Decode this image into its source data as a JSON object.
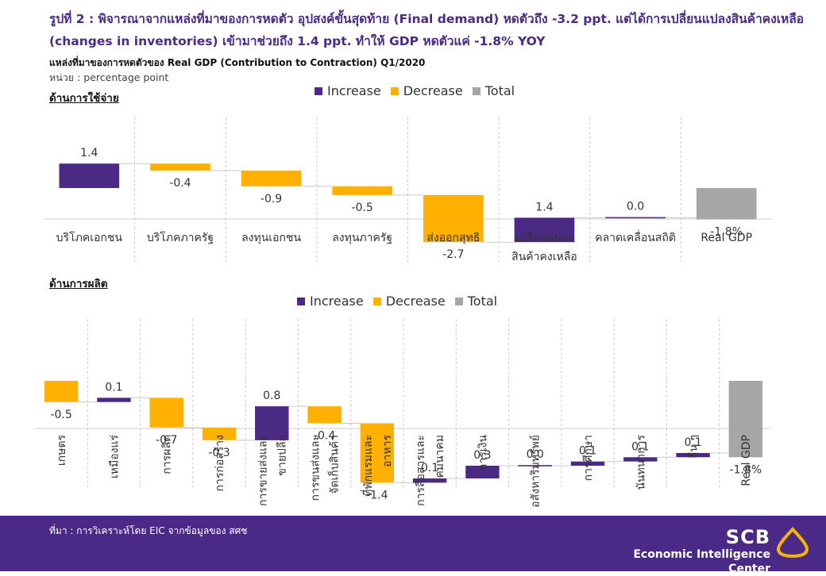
{
  "header": {
    "title": "รูปที่ 2 : พิจารณาจากแหล่งที่มาของการหดตัว อุปสงค์ขั้นสุดท้าย (Final demand) หดตัวถึง -3.2 ppt. แต่ได้การเปลี่ยนแปลงสินค้าคงเหลือ (changes in inventories) เข้ามาช่วยถึง 1.4 ppt. ทำให้ GDP หดตัวแค่ -1.8% YOY",
    "subtitle": "แหล่งที่มาของการหดตัวของ  Real GDP (Contribution to Contraction) Q1/2020",
    "unit": "หน่วย : percentage point"
  },
  "colors": {
    "increase": "#4b2a85",
    "decrease": "#ffb000",
    "total": "#a6a6a6",
    "brand": "#4a2a86"
  },
  "legend": {
    "increase": "Increase",
    "decrease": "Decrease",
    "total": "Total"
  },
  "chart_data": [
    {
      "type": "bar",
      "subtype": "waterfall",
      "section_title": "ด้านการใช้จ่าย",
      "categories": [
        "บริโภคเอกชน",
        "บริโภคภาครัฐ",
        "ลงทุนเอกชน",
        "ลงทุนภาครัฐ",
        "ส่งออกสุทธิ",
        "เปลี่ยนแปลง สินค้าคงเหลือ",
        "คลาดเคลื่อนสถิติ",
        "Real GDP"
      ],
      "category_lines": [
        [
          "บริโภคเอกชน"
        ],
        [
          "บริโภคภาครัฐ"
        ],
        [
          "ลงทุนเอกชน"
        ],
        [
          "ลงทุนภาครัฐ"
        ],
        [
          "ส่งออกสุทธิ"
        ],
        [
          "เปลี่ยนแปลง",
          "สินค้าคงเหลือ"
        ],
        [
          "คลาดเคลื่อนสถิติ"
        ],
        [
          "Real GDP"
        ]
      ],
      "values": [
        1.4,
        -0.4,
        -0.9,
        -0.5,
        -2.7,
        1.4,
        0.0,
        -1.8
      ],
      "labels": [
        "1.4",
        "-0.4",
        "-0.9",
        "-0.5",
        "-2.7",
        "1.4",
        "0.0",
        "-1.8%"
      ],
      "kinds": [
        "increase",
        "decrease",
        "decrease",
        "decrease",
        "decrease",
        "increase",
        "increase",
        "total"
      ],
      "legend": [
        "Increase",
        "Decrease",
        "Total"
      ]
    },
    {
      "type": "bar",
      "subtype": "waterfall",
      "section_title": "ด้านการผลิต",
      "categories": [
        "เกษตร",
        "เหมืองแร่",
        "การผลิต",
        "การก่อสร้าง",
        "การขายส่งและ ขายปลีก",
        "การขนส่งและ จัดเก็บสินค้า",
        "ที่พักแรมและ อาหาร",
        "การสื่อสารและ คมนาคม",
        "การเงิน",
        "อสังหาริมทรัพย์",
        "การศึกษา",
        "นันทนาการ",
        "อื่น ๆ",
        "Real GDP"
      ],
      "category_lines": [
        [
          "เกษตร"
        ],
        [
          "เหมืองแร่"
        ],
        [
          "การผลิต"
        ],
        [
          "การก่อสร้าง"
        ],
        [
          "การขายส่งและ",
          "ขายปลีก"
        ],
        [
          "การขนส่งและ",
          "จัดเก็บสินค้า"
        ],
        [
          "ที่พักแรมและ",
          "อาหาร"
        ],
        [
          "การสื่อสารและ",
          "คมนาคม"
        ],
        [
          "การเงิน"
        ],
        [
          "อสังหาริมทรัพย์"
        ],
        [
          "การศึกษา"
        ],
        [
          "นันทนาการ"
        ],
        [
          "อื่น ๆ"
        ],
        [
          "Real GDP"
        ]
      ],
      "values": [
        -0.5,
        0.1,
        -0.7,
        -0.3,
        0.8,
        -0.4,
        -1.4,
        0.1,
        0.3,
        0.0,
        0.1,
        0.1,
        0.1,
        -1.8
      ],
      "labels": [
        "-0.5",
        "0.1",
        "-0.7",
        "-0.3",
        "0.8",
        "-0.4",
        "-1.4",
        "0.1",
        "0.3",
        "0.0",
        "0.1",
        "0.1",
        "0.1",
        "-1.8%"
      ],
      "kinds": [
        "decrease",
        "increase",
        "decrease",
        "decrease",
        "increase",
        "decrease",
        "decrease",
        "increase",
        "increase",
        "increase",
        "increase",
        "increase",
        "increase",
        "total"
      ],
      "legend": [
        "Increase",
        "Decrease",
        "Total"
      ]
    }
  ],
  "footer": {
    "source": "ที่มา : การวิเคราะห์โดย EIC จากข้อมูลของ สศช",
    "brand_name": "SCB",
    "brand_unit": "Economic Intelligence Center"
  }
}
